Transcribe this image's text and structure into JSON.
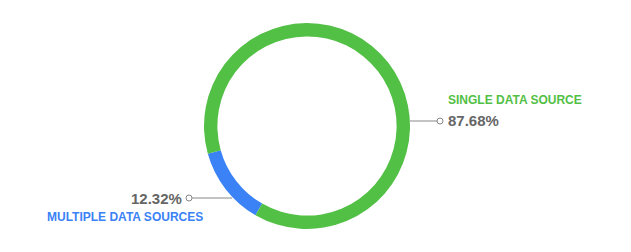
{
  "chart_data": {
    "type": "pie",
    "categories": [
      "MULTIPLE DATA SOURCES",
      "SINGLE DATA SOURCE"
    ],
    "values": [
      12.32,
      87.68
    ],
    "value_labels": [
      "12.32%",
      "87.68%"
    ],
    "colors": [
      "#3b82f6",
      "#52bf45"
    ]
  }
}
